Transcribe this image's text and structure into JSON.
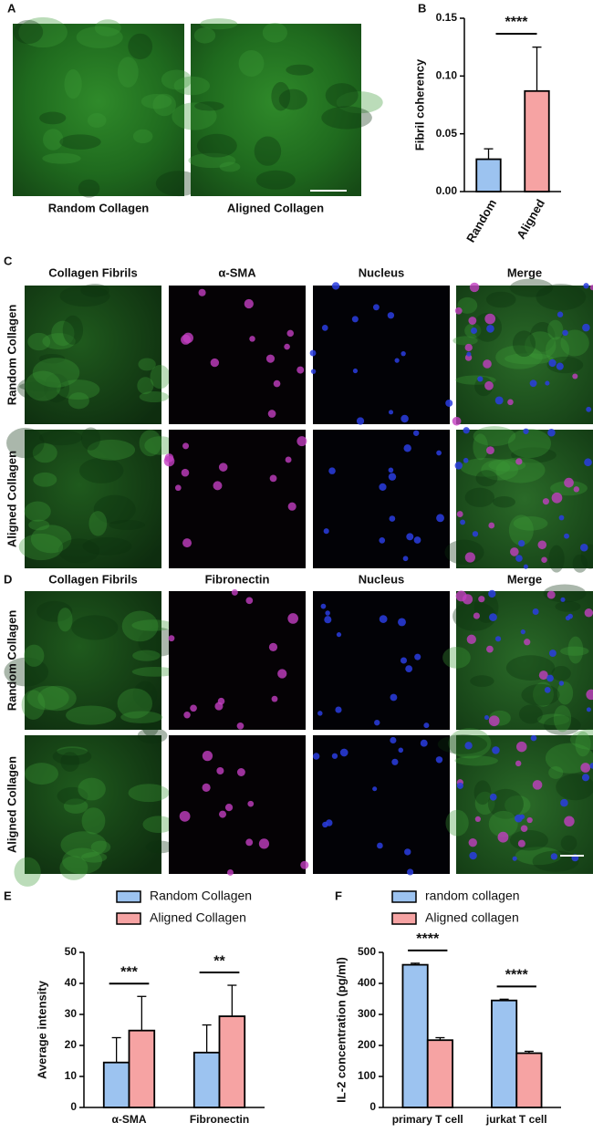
{
  "panels": {
    "labels": [
      "A",
      "B",
      "C",
      "D",
      "E",
      "F"
    ],
    "a_labels": [
      "Random Collagen",
      "Aligned Collagen"
    ],
    "c_headers": [
      "Collagen Fibrils",
      "α-SMA",
      "Nucleus",
      "Merge"
    ],
    "c_rows": [
      "Random Collagen",
      "Aligned Collagen"
    ],
    "d_headers": [
      "Collagen Fibrils",
      "Fibronectin",
      "Nucleus",
      "Merge"
    ],
    "d_rows": [
      "Random Collagen",
      "Aligned Collagen"
    ]
  },
  "chart_data": [
    {
      "type": "bar",
      "y_label": "Fibril coherency",
      "categories": [
        "Random",
        "Aligned"
      ],
      "values": [
        0.028,
        0.087
      ],
      "errors": [
        0.009,
        0.038
      ],
      "colors": [
        "#9cc3f0",
        "#f6a3a3"
      ],
      "ylim": [
        0,
        0.15
      ],
      "yticks": [
        {
          "value": 0,
          "label": "0.00"
        },
        {
          "value": 0.05,
          "label": "0.05"
        },
        {
          "value": 0.1,
          "label": "0.10"
        },
        {
          "value": 0.15,
          "label": "0.15"
        }
      ],
      "annotations": [
        "****"
      ]
    },
    {
      "type": "bar",
      "y_label": "Average intensity",
      "categories": [
        "α-SMA",
        "Fibronectin"
      ],
      "series": [
        {
          "name": "Random Collagen",
          "color": "#9cc3f0",
          "values": [
            14.5,
            17.7
          ],
          "errors": [
            8,
            8.9
          ]
        },
        {
          "name": "Aligned Collagen",
          "color": "#f6a3a3",
          "values": [
            24.8,
            29.4
          ],
          "errors": [
            11,
            10
          ]
        }
      ],
      "ylim": [
        0,
        50
      ],
      "yticks": [
        0,
        10,
        20,
        30,
        40,
        50
      ],
      "annotations": [
        "***",
        "**"
      ]
    },
    {
      "type": "bar",
      "y_label": "IL-2 concentration (pg/ml)",
      "categories": [
        "primary T cell",
        "jurkat T cell"
      ],
      "series": [
        {
          "name": "random collagen",
          "color": "#9cc3f0",
          "values": [
            460,
            345
          ],
          "errors": [
            5,
            4
          ]
        },
        {
          "name": "Aligned collagen",
          "color": "#f6a3a3",
          "values": [
            217,
            175
          ],
          "errors": [
            8,
            6
          ]
        }
      ],
      "ylim": [
        0,
        500
      ],
      "yticks": [
        0,
        100,
        200,
        300,
        400,
        500
      ],
      "annotations": [
        "****",
        "****"
      ]
    }
  ]
}
